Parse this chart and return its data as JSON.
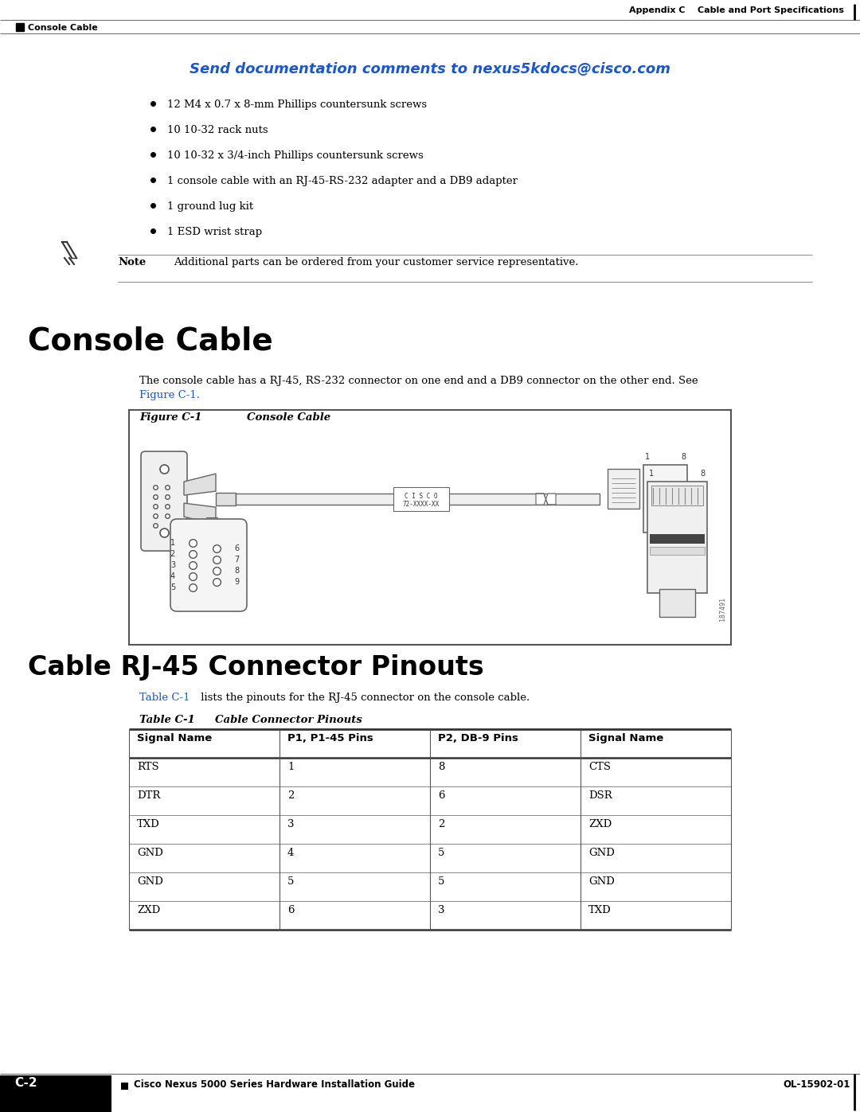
{
  "page_title_header": "Appendix C    Cable and Port Specifications",
  "page_header_label": "Console Cable",
  "email_line": "Send documentation comments to nexus5kdocs@cisco.com",
  "bullet_items": [
    "12 M4 x 0.7 x 8-mm Phillips countersunk screws",
    "10 10-32 rack nuts",
    "10 10-32 x 3/4-inch Phillips countersunk screws",
    "1 console cable with an RJ-45-RS-232 adapter and a DB9 adapter",
    "1 ground lug kit",
    "1 ESD wrist strap"
  ],
  "note_text": "Additional parts can be ordered from your customer service representative.",
  "section_title": "Console Cable",
  "body_text1": "The console cable has a RJ-45, RS-232 connector on one end and a DB9 connector on the other end. See",
  "body_text1_link": "Figure C-1.",
  "figure_label": "Figure C-1",
  "figure_caption": "Console Cable",
  "section2_title": "Cable RJ-45 Connector Pinouts",
  "table_ref_text1": " lists the pinouts for the RJ-45 connector on the console cable.",
  "table_ref_link": "Table C-1",
  "table_label": "Table C-1",
  "table_caption": "Cable Connector Pinouts",
  "table_headers": [
    "Signal Name",
    "P1, P1-45 Pins",
    "P2, DB-9 Pins",
    "Signal Name"
  ],
  "table_rows": [
    [
      "RTS",
      "1",
      "8",
      "CTS"
    ],
    [
      "DTR",
      "2",
      "6",
      "DSR"
    ],
    [
      "TXD",
      "3",
      "2",
      "ZXD"
    ],
    [
      "GND",
      "4",
      "5",
      "GND"
    ],
    [
      "GND",
      "5",
      "5",
      "GND"
    ],
    [
      "ZXD",
      "6",
      "3",
      "TXD"
    ]
  ],
  "footer_text": "Cisco Nexus 5000 Series Hardware Installation Guide",
  "footer_page": "C-2",
  "footer_right": "OL-15902-01",
  "color_blue": "#1a56cc",
  "color_black": "#000000",
  "color_gray": "#888888",
  "color_dgray": "#555555",
  "color_lgray": "#AAAAAA",
  "color_white": "#FFFFFF",
  "bg_color": "#FFFFFF"
}
